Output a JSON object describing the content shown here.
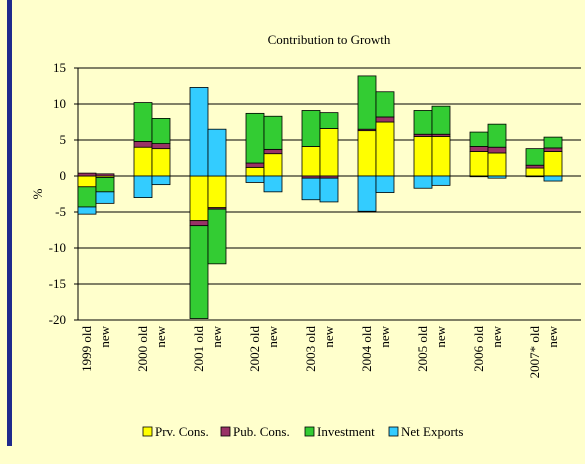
{
  "chart_data": {
    "type": "bar",
    "stacked": true,
    "title": "Contribution to Growth",
    "y_label": "%",
    "categories": [
      "1999 old",
      "new",
      "2000 old",
      "new",
      "2001 old",
      "new",
      "2002 old",
      "new",
      "2003 old",
      "new",
      "2004 old",
      "new",
      "2005 old",
      "new",
      "2006 old",
      "new",
      "2007* old",
      "new"
    ],
    "series": [
      {
        "name": "Prv. Cons.",
        "color": "#ffff00",
        "values": [
          -1.5,
          -0.2,
          4.0,
          3.8,
          -6.2,
          -4.4,
          1.2,
          3.1,
          4.1,
          6.6,
          6.3,
          7.5,
          5.5,
          5.5,
          3.4,
          3.2,
          1.1,
          3.4
        ]
      },
      {
        "name": "Pub. Cons.",
        "color": "#993366",
        "values": [
          0.4,
          0.3,
          0.8,
          0.7,
          -0.7,
          -0.2,
          0.6,
          0.6,
          -0.3,
          -0.3,
          0.2,
          0.7,
          0.3,
          0.3,
          0.7,
          0.8,
          0.4,
          0.5
        ]
      },
      {
        "name": "Investment",
        "color": "#33cc33",
        "values": [
          -2.8,
          -2.0,
          5.4,
          3.5,
          -12.9,
          -7.6,
          6.9,
          4.6,
          5.0,
          2.2,
          7.4,
          3.5,
          3.3,
          3.9,
          2.0,
          3.2,
          2.3,
          1.5
        ]
      },
      {
        "name": "Net Exports",
        "color": "#33ccff",
        "values": [
          -1.0,
          -1.6,
          -3.0,
          -1.2,
          12.3,
          6.5,
          -0.9,
          -2.2,
          -3.0,
          -3.3,
          -4.9,
          -2.3,
          -1.7,
          -1.3,
          -0.1,
          -0.3,
          -0.1,
          -0.7
        ]
      }
    ],
    "ylim": [
      -20,
      15
    ],
    "yticks": [
      -20,
      -15,
      -10,
      -5,
      0,
      5,
      10,
      15
    ],
    "grid": true,
    "legend": "bottom"
  }
}
